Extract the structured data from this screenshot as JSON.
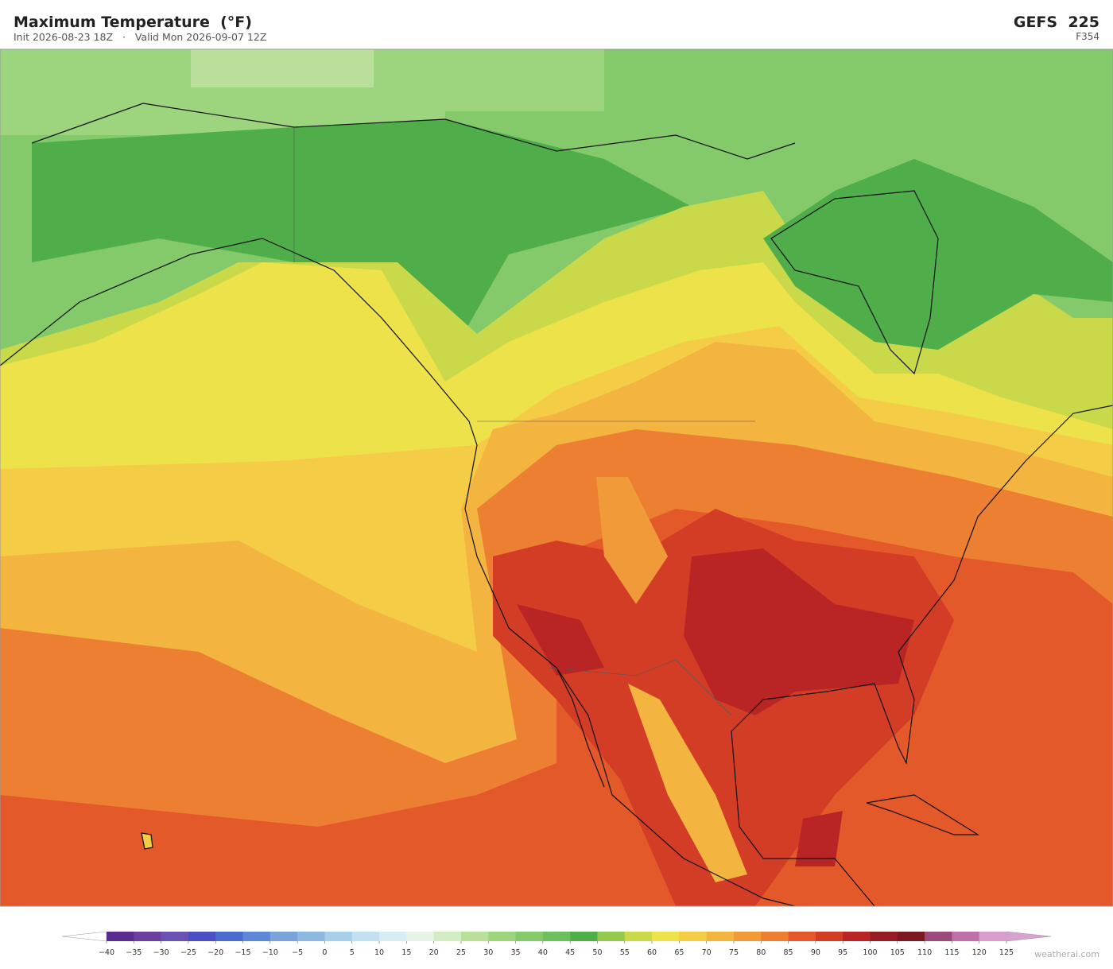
{
  "header": {
    "title": "Maximum Temperature  (°F)",
    "subtitle": "Init 2026-08-23 18Z   ·   Valid Mon 2026-09-07 12Z",
    "model": "GEFS  225",
    "forecast_hour": "F354"
  },
  "colorbar": {
    "ticks": [
      {
        "value": -40,
        "label": "−40"
      },
      {
        "value": -35,
        "label": "−35"
      },
      {
        "value": -30,
        "label": "−30"
      },
      {
        "value": -25,
        "label": "−25"
      },
      {
        "value": -20,
        "label": "−20"
      },
      {
        "value": -15,
        "label": "−15"
      },
      {
        "value": -10,
        "label": "−10"
      },
      {
        "value": -5,
        "label": "−5"
      },
      0,
      5,
      10,
      15,
      20,
      25,
      30,
      35,
      40,
      45,
      50,
      55,
      60,
      65,
      70,
      75,
      80,
      85,
      90,
      95,
      100,
      105,
      110,
      115,
      120,
      125
    ],
    "colors": [
      "#5b2c8f",
      "#6b3fa0",
      "#6a52b5",
      "#4a4fc4",
      "#4b6bd0",
      "#5d88d6",
      "#7aa3da",
      "#8db8e0",
      "#a7cfe8",
      "#c2e0ef",
      "#d8ecf3",
      "#e6f4e8",
      "#d2ecc4",
      "#b9e09a",
      "#9dd57f",
      "#84ca6a",
      "#6cbf5c",
      "#4fae4a",
      "#93c94c",
      "#c9d94a",
      "#eee24a",
      "#f5cc45",
      "#f3b540",
      "#f09a3a",
      "#ec7f32",
      "#e4592a",
      "#d33d26",
      "#b82524",
      "#951c22",
      "#7a1a20",
      "#9c4a7a",
      "#c070a8",
      "#d99ccb"
    ],
    "extend_colors": [
      "#ffffff",
      "#d9a0d0"
    ]
  },
  "watermark": "weatherai.com"
}
